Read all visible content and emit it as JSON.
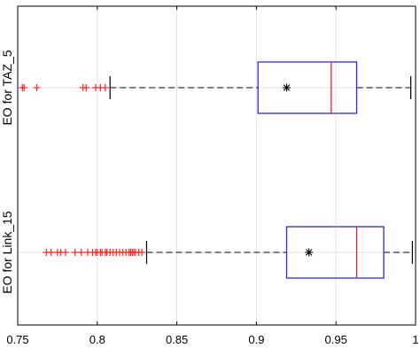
{
  "chart_data": {
    "type": "boxplot",
    "orientation": "horizontal",
    "xlim": [
      0.75,
      1.0
    ],
    "x_ticks": [
      0.75,
      0.8,
      0.85,
      0.9,
      0.95,
      1.0
    ],
    "x_tick_labels": [
      "0.75",
      "0.8",
      "0.85",
      "0.9",
      "0.95",
      "1"
    ],
    "grid": true,
    "categories": [
      "EO for TAZ_5",
      "EO for Link_15"
    ],
    "boxes": [
      {
        "label": "EO for TAZ_5",
        "whisker_low": 0.808,
        "q1": 0.901,
        "median": 0.947,
        "q3": 0.963,
        "whisker_high": 0.997,
        "mean": 0.919,
        "outliers": [
          0.753,
          0.754,
          0.762,
          0.791,
          0.793,
          0.799,
          0.802,
          0.805
        ]
      },
      {
        "label": "EO for Link_15",
        "whisker_low": 0.831,
        "q1": 0.919,
        "median": 0.963,
        "q3": 0.98,
        "whisker_high": 0.998,
        "mean": 0.933,
        "outliers": [
          0.768,
          0.771,
          0.775,
          0.777,
          0.78,
          0.786,
          0.79,
          0.794,
          0.797,
          0.799,
          0.8,
          0.802,
          0.803,
          0.805,
          0.806,
          0.808,
          0.81,
          0.812,
          0.814,
          0.816,
          0.818,
          0.82,
          0.821,
          0.822,
          0.823,
          0.824,
          0.826,
          0.828
        ]
      }
    ],
    "colors": {
      "box": "#2b2bd6",
      "median": "#e0202a",
      "outlier": "#ff2020",
      "whisker": "#000000",
      "grid": "#e3e3e3"
    }
  }
}
